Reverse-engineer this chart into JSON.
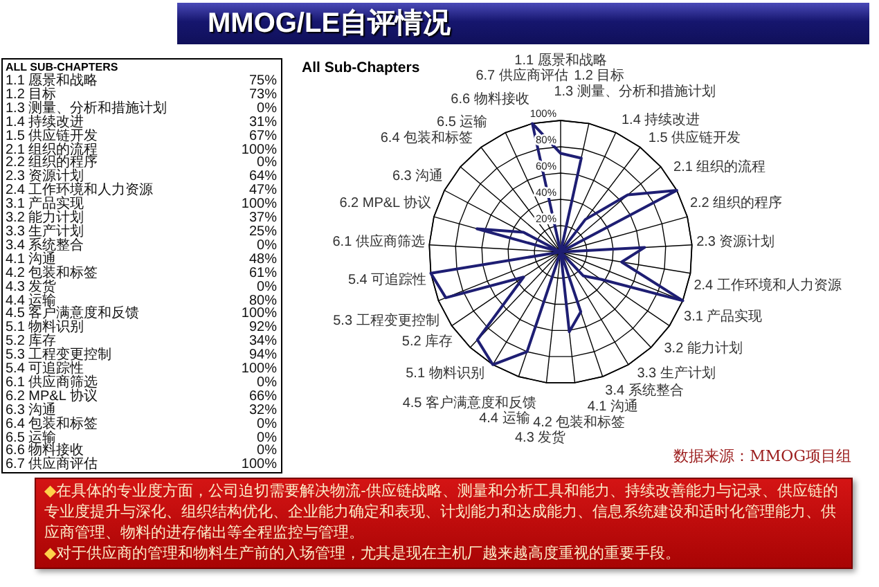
{
  "chart_data": [
    {
      "type": "radar",
      "title": "MMOG/LE自评情况",
      "subtitle": "All Sub-Chapters",
      "categories": [
        "1.1 愿景和战略",
        "1.2 目标",
        "1.3 测量、分析和措施计划",
        "1.4 持续改进",
        "1.5 供应链开发",
        "2.1 组织的流程",
        "2.2 组织的程序",
        "2.3 资源计划",
        "2.4 工作环境和人力资源",
        "3.1 产品实现",
        "3.2 能力计划",
        "3.3 生产计划",
        "3.4 系统整合",
        "4.1 沟通",
        "4.2 包装和标签",
        "4.3 发货",
        "4.4 运输",
        "4.5 客户满意度和反馈",
        "5.1 物料识别",
        "5.2 库存",
        "5.3 工程变更控制",
        "5.4 可追踪性",
        "6.1 供应商筛选",
        "6.2 MP&L 协议",
        "6.3 沟通",
        "6.4 包装和标签",
        "6.5 运输",
        "6.6 物料接收",
        "6.7 供应商评估"
      ],
      "series": [
        {
          "color": "#1e1e73",
          "values": [
            75,
            73,
            0,
            31,
            67,
            100,
            0,
            64,
            47,
            100,
            37,
            25,
            0,
            48,
            61,
            0,
            80,
            100,
            92,
            34,
            94,
            100,
            0,
            66,
            32,
            0,
            0,
            0,
            100
          ]
        }
      ],
      "ylim": [
        0,
        100
      ],
      "yticks": [
        {
          "value": 20,
          "label": "20%"
        },
        {
          "value": 40,
          "label": "40%"
        },
        {
          "value": 60,
          "label": "60%"
        },
        {
          "value": 80,
          "label": "80%"
        },
        {
          "value": 100,
          "label": "100%"
        }
      ],
      "grid": true,
      "annotations": [
        "数据来源：MMOG项目组",
        "◆在具体的专业度方面，公司迫切需要解决物流-供应链战略、测量和分析工具和能力、持续改善能力与记录、供应链的专业度提升与深化、组织结构优化、企业能力确定和表现、计划能力和达成能力、信息系统建设和适时化管理能力、供应商管理、物料的进存储出等全程监控与管理。",
        "◆对于供应商的管理和物料生产前的入场管理，尤其是现在主机厂越来越高度重视的重要手段。"
      ]
    },
    {
      "type": "other",
      "title": "ALL SUB-CHAPTERS",
      "categories": [
        "1.1 愿景和战略",
        "1.2 目标",
        "1.3 测量、分析和措施计划",
        "1.4 持续改进",
        "1.5 供应链开发",
        "2.1 组织的流程",
        "2.2 组织的程序",
        "2.3 资源计划",
        "2.4 工作环境和人力资源",
        "3.1 产品实现",
        "3.2 能力计划",
        "3.3 生产计划",
        "3.4 系统整合",
        "4.1 沟通",
        "4.2 包装和标签",
        "4.3 发货",
        "4.4 运输",
        "4.5 客户满意度和反馈",
        "5.1 物料识别",
        "5.2 库存",
        "5.3 工程变更控制",
        "5.4 可追踪性",
        "6.1 供应商筛选",
        "6.2 MP&L 协议",
        "6.3 沟通",
        "6.4 包装和标签",
        "6.5 运输",
        "6.6 物料接收",
        "6.7 供应商评估"
      ],
      "value_labels": [
        "75%",
        "73%",
        "0%",
        "31%",
        "67%",
        "100%",
        "0%",
        "64%",
        "47%",
        "100%",
        "37%",
        "25%",
        "0%",
        "48%",
        "61%",
        "0%",
        "80%",
        "100%",
        "92%",
        "34%",
        "94%",
        "100%",
        "0%",
        "66%",
        "32%",
        "0%",
        "0%",
        "0%",
        "100%"
      ]
    }
  ]
}
